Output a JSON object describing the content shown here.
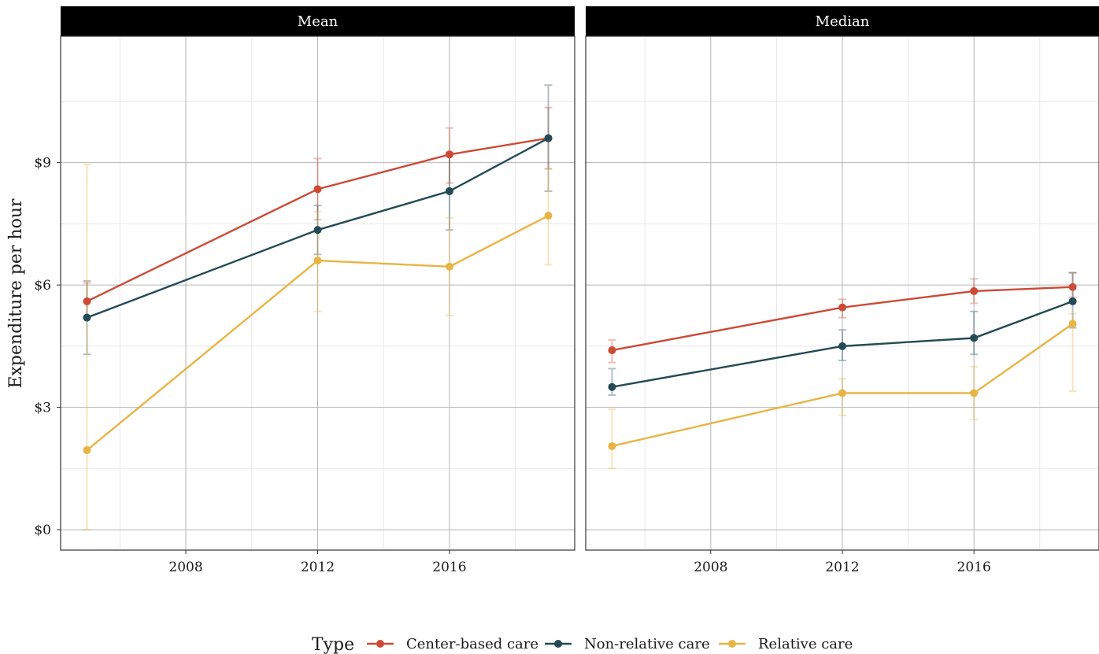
{
  "chart_data": {
    "type": "line",
    "ylabel": "Expenditure per hour",
    "ylim": [
      -0.5,
      12.1
    ],
    "xlim": [
      2004.2,
      2019.8
    ],
    "x_ticks": [
      2008,
      2012,
      2016
    ],
    "x_tick_labels": [
      "2008",
      "2012",
      "2016"
    ],
    "y_ticks": [
      0,
      3,
      6,
      9
    ],
    "y_tick_labels": [
      "$0",
      "$3",
      "$6",
      "$9"
    ],
    "grid": true,
    "legend": {
      "title": "Type",
      "placement": "bottom",
      "entries": [
        "Center-based care",
        "Non-relative care",
        "Relative care"
      ]
    },
    "series_colors": {
      "Center-based care": "#CC4A36",
      "Non-relative care": "#234A55",
      "Relative care": "#E8B444"
    },
    "facets": [
      {
        "title": "Mean",
        "series": [
          {
            "name": "Center-based care",
            "x": [
              2005,
              2012,
              2016,
              2019
            ],
            "values": [
              5.6,
              8.35,
              9.2,
              9.6
            ],
            "lower": [
              5.2,
              7.6,
              8.5,
              8.85
            ],
            "upper": [
              6.05,
              9.1,
              9.85,
              10.35
            ]
          },
          {
            "name": "Non-relative care",
            "x": [
              2005,
              2012,
              2016,
              2019
            ],
            "values": [
              5.2,
              7.35,
              8.3,
              9.6
            ],
            "lower": [
              4.3,
              6.75,
              7.35,
              8.3
            ],
            "upper": [
              6.1,
              7.95,
              9.25,
              10.9
            ]
          },
          {
            "name": "Relative care",
            "x": [
              2005,
              2012,
              2016,
              2019
            ],
            "values": [
              1.95,
              6.6,
              6.45,
              7.7
            ],
            "lower": [
              0.0,
              5.35,
              5.25,
              6.5
            ],
            "upper": [
              8.95,
              7.8,
              7.65,
              8.85
            ]
          }
        ]
      },
      {
        "title": "Median",
        "series": [
          {
            "name": "Center-based care",
            "x": [
              2005,
              2012,
              2016,
              2019
            ],
            "values": [
              4.4,
              5.45,
              5.85,
              5.95
            ],
            "lower": [
              4.1,
              5.2,
              5.55,
              5.7
            ],
            "upper": [
              4.65,
              5.65,
              6.15,
              6.3
            ]
          },
          {
            "name": "Non-relative care",
            "x": [
              2005,
              2012,
              2016,
              2019
            ],
            "values": [
              3.5,
              4.5,
              4.7,
              5.6
            ],
            "lower": [
              3.3,
              4.15,
              4.3,
              4.95
            ],
            "upper": [
              3.95,
              4.9,
              5.35,
              6.3
            ]
          },
          {
            "name": "Relative care",
            "x": [
              2005,
              2012,
              2016,
              2019
            ],
            "values": [
              2.05,
              3.35,
              3.35,
              5.05
            ],
            "lower": [
              1.5,
              2.8,
              2.7,
              3.4
            ],
            "upper": [
              2.95,
              3.7,
              4.0,
              5.3
            ]
          }
        ]
      }
    ]
  }
}
